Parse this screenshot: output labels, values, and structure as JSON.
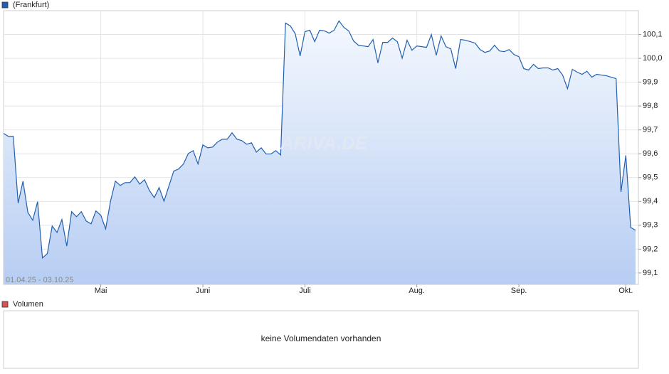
{
  "chart_data": {
    "type": "line",
    "watermark": "ARIVA.DE",
    "date_range": "01.04.25 - 03.10.25",
    "categories": [
      null,
      null,
      null,
      null,
      null,
      null,
      null,
      null,
      null,
      null,
      null,
      null,
      null,
      null,
      null,
      null,
      null,
      null,
      null,
      null,
      "Mai",
      null,
      null,
      null,
      null,
      null,
      null,
      null,
      null,
      null,
      null,
      null,
      null,
      null,
      null,
      null,
      null,
      null,
      null,
      null,
      null,
      "Juni",
      null,
      null,
      null,
      null,
      null,
      null,
      null,
      null,
      null,
      null,
      null,
      null,
      null,
      null,
      null,
      null,
      null,
      null,
      null,
      null,
      "Juli",
      null,
      null,
      null,
      null,
      null,
      null,
      null,
      null,
      null,
      null,
      null,
      null,
      null,
      null,
      null,
      null,
      null,
      null,
      null,
      null,
      null,
      null,
      "Aug.",
      null,
      null,
      null,
      null,
      null,
      null,
      null,
      null,
      null,
      null,
      null,
      null,
      null,
      null,
      null,
      null,
      null,
      null,
      null,
      null,
      "Sep.",
      null,
      null,
      null,
      null,
      null,
      null,
      null,
      null,
      null,
      null,
      null,
      null,
      null,
      null,
      null,
      null,
      null,
      null,
      null,
      null,
      null,
      "Okt.",
      null,
      null
    ],
    "series": [
      {
        "name": "(Frankfurt)",
        "color": "#2160b0",
        "values": [
          99.685,
          99.673,
          99.673,
          99.393,
          99.485,
          99.354,
          99.321,
          99.399,
          99.163,
          99.181,
          99.297,
          99.27,
          99.324,
          99.213,
          99.357,
          99.336,
          99.357,
          99.318,
          99.306,
          99.36,
          99.342,
          99.285,
          99.401,
          99.485,
          99.467,
          99.479,
          99.479,
          99.503,
          99.473,
          99.491,
          99.446,
          99.416,
          99.458,
          99.401,
          99.464,
          99.527,
          99.536,
          99.557,
          99.601,
          99.613,
          99.557,
          99.637,
          99.625,
          99.628,
          99.649,
          99.661,
          99.661,
          99.688,
          99.661,
          99.655,
          99.64,
          99.646,
          99.607,
          99.625,
          99.599,
          99.599,
          99.613,
          99.595,
          100.148,
          100.136,
          100.103,
          100.01,
          100.112,
          100.118,
          100.07,
          100.118,
          100.115,
          100.106,
          100.118,
          100.157,
          100.13,
          100.115,
          100.073,
          100.055,
          100.052,
          100.049,
          100.079,
          99.981,
          100.067,
          100.067,
          100.085,
          100.07,
          100.001,
          100.076,
          100.034,
          100.052,
          100.049,
          100.046,
          100.1,
          100.013,
          100.094,
          100.049,
          100.04,
          99.957,
          100.079,
          100.076,
          100.07,
          100.064,
          100.037,
          100.025,
          100.031,
          100.055,
          100.031,
          100.028,
          100.037,
          100.016,
          100.007,
          99.957,
          99.951,
          99.975,
          99.957,
          99.96,
          99.96,
          99.951,
          99.957,
          99.93,
          99.873,
          99.954,
          99.942,
          99.933,
          99.946,
          99.921,
          99.933,
          99.93,
          99.927,
          99.921,
          99.915,
          99.44,
          99.593,
          99.291,
          99.279
        ]
      }
    ],
    "ylim": [
      99.052,
      100.2
    ],
    "yticks": [
      {
        "value": 99.1,
        "label": "99,1"
      },
      {
        "value": 99.2,
        "label": "99,2"
      },
      {
        "value": 99.3,
        "label": "99,3"
      },
      {
        "value": 99.4,
        "label": "99,4"
      },
      {
        "value": 99.5,
        "label": "99,5"
      },
      {
        "value": 99.6,
        "label": "99,6"
      },
      {
        "value": 99.7,
        "label": "99,7"
      },
      {
        "value": 99.8,
        "label": "99,8"
      },
      {
        "value": 99.9,
        "label": "99,9"
      },
      {
        "value": 100.0,
        "label": "100,0"
      },
      {
        "value": 100.1,
        "label": "100,1"
      }
    ],
    "grid": true
  },
  "volume": {
    "series_name": "Volumen",
    "series_color": "#d9534f",
    "message": "keine Volumendaten vorhanden"
  }
}
